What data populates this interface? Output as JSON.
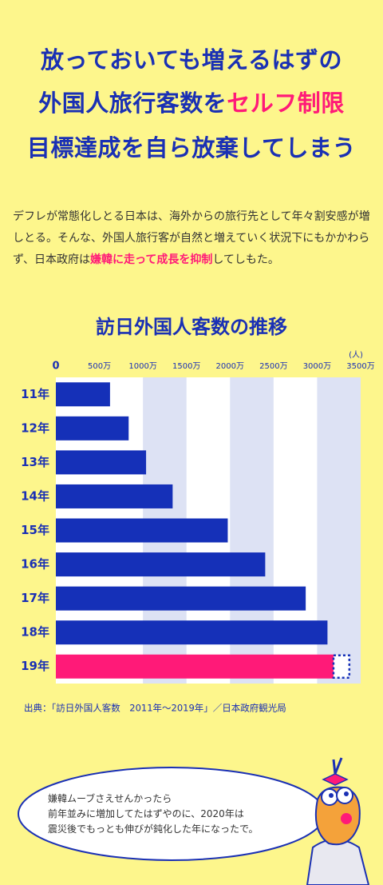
{
  "header": {
    "title_lines": [
      [
        "放っておいても増えるはずの"
      ],
      [
        "外国人旅行客数を",
        "セルフ制限"
      ],
      [
        "目標達成を自ら放棄してしまう"
      ]
    ]
  },
  "paragraph": [
    "デフレが常態化しとる日本は、海外からの旅行先として年々割安感が増しとる。そんな、外国人旅行客が自然と増えていく状況下にもかかわらず、日本政府は",
    "嫌韓に走って成長を抑制",
    "してしもた。"
  ],
  "chart_data": {
    "type": "bar",
    "orientation": "horizontal",
    "title": "訪日外国人客数の推移",
    "unit_label": "(人)",
    "categories": [
      "11年",
      "12年",
      "13年",
      "14年",
      "15年",
      "16年",
      "17年",
      "18年",
      "19年"
    ],
    "values": [
      622,
      836,
      1036,
      1341,
      1974,
      2404,
      2869,
      3119,
      3188
    ],
    "colors": [
      "#1530b8",
      "#1530b8",
      "#1530b8",
      "#1530b8",
      "#1530b8",
      "#1530b8",
      "#1530b8",
      "#1530b8",
      "#ff1a78"
    ],
    "projected": [
      null,
      null,
      null,
      null,
      null,
      null,
      null,
      null,
      3370
    ],
    "xlim": [
      0,
      3500
    ],
    "xticks": [
      0,
      {
        "value": 500,
        "label": "500万"
      },
      {
        "value": 1000,
        "label": "1000万"
      },
      {
        "value": 1500,
        "label": "1500万"
      },
      {
        "value": 2000,
        "label": "2000万"
      },
      {
        "value": 2500,
        "label": "2500万"
      },
      {
        "value": 3000,
        "label": "3000万"
      },
      {
        "value": 3500,
        "label": "3500万"
      }
    ],
    "source": "出典：「訪日外国人客数　2011年〜2019年」／日本政府観光局"
  },
  "bubble": [
    "嫌韓ムーブさえせんかったら",
    "前年並みに増加してたはずやのに、2020年は",
    "震災後でもっとも伸びが鈍化した年になったで。"
  ]
}
